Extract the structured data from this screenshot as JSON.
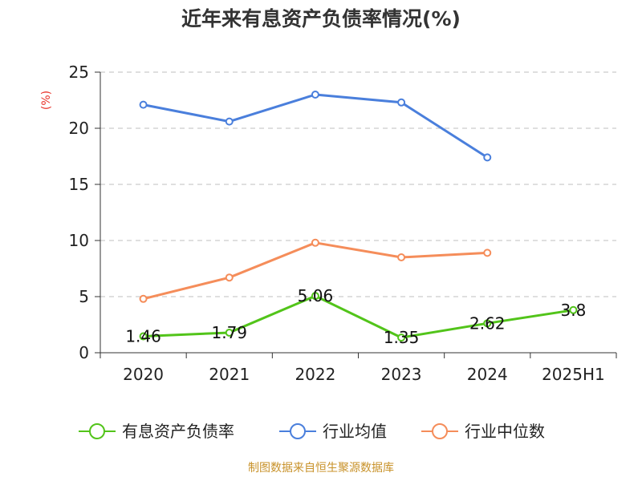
{
  "chart_data": {
    "type": "line",
    "title": "近年来有息资产负债率情况(%)",
    "ylabel": "(%)",
    "categories": [
      "2020",
      "2021",
      "2022",
      "2023",
      "2024",
      "2025H1"
    ],
    "ylim": [
      0,
      25
    ],
    "yticks": [
      0,
      5,
      10,
      15,
      20,
      25
    ],
    "grid": true,
    "legend_position": "bottom",
    "series": [
      {
        "name": "有息资产负债率",
        "color": "#52c41a",
        "values": [
          1.46,
          1.79,
          5.06,
          1.35,
          2.62,
          3.8
        ],
        "labels": [
          "1.46",
          "1.79",
          "5.06",
          "1.35",
          "2.62",
          "3.8"
        ]
      },
      {
        "name": "行业均值",
        "color": "#4a7fdc",
        "values": [
          22.1,
          20.6,
          23.0,
          22.3,
          17.4,
          null
        ]
      },
      {
        "name": "行业中位数",
        "color": "#f58d5a",
        "values": [
          4.8,
          6.7,
          9.8,
          8.5,
          8.9,
          null
        ]
      }
    ]
  },
  "source": "制图数据来自恒生聚源数据库"
}
